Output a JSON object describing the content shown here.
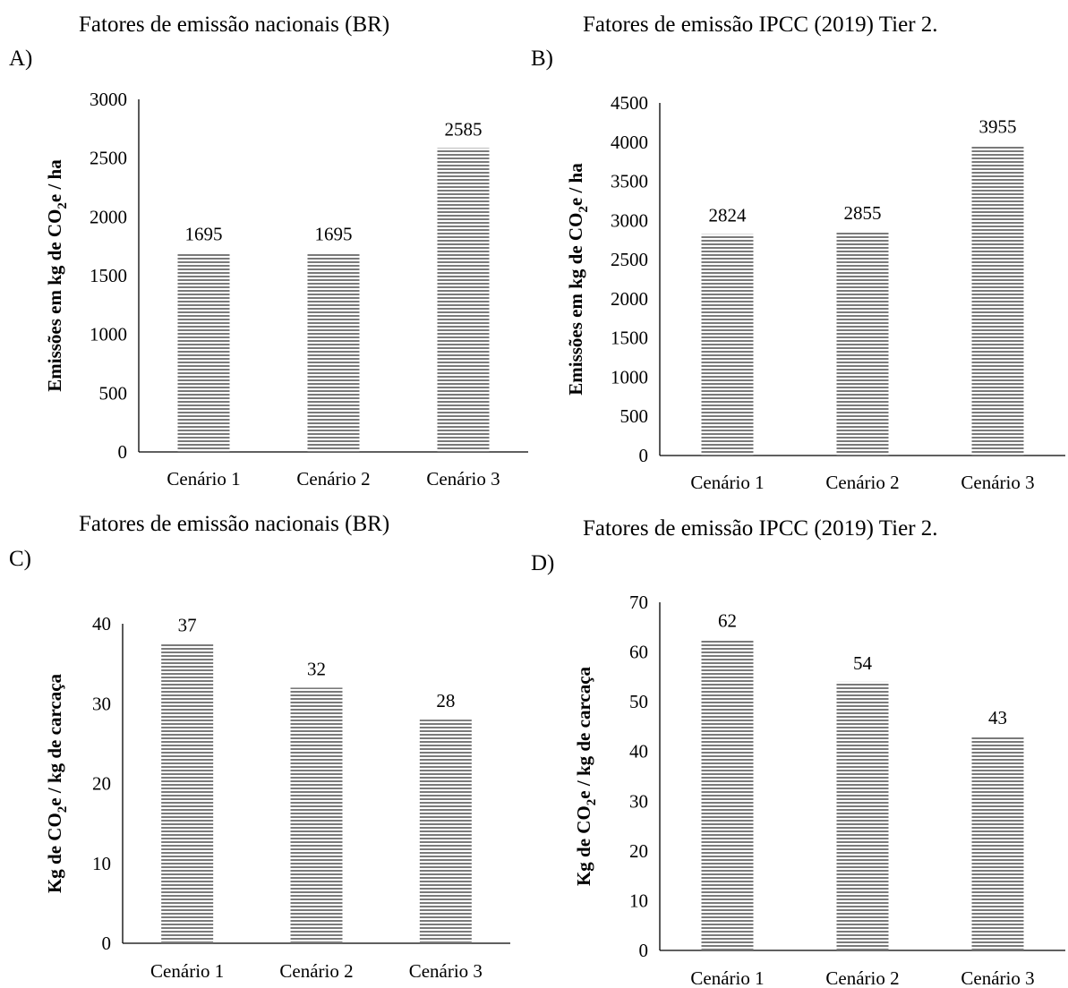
{
  "chart_data": [
    {
      "panel": "A)",
      "type": "bar",
      "title": "Fatores de emissão nacionais (BR)",
      "ylabel": {
        "pre": "Emissões em kg de CO",
        "sub": "2",
        "post": "e / ha"
      },
      "categories": [
        "Cenário 1",
        "Cenário 2",
        "Cenário 3"
      ],
      "values": [
        1695,
        1695,
        2585
      ],
      "ylim": [
        0,
        3000
      ],
      "yticks": [
        0,
        500,
        1000,
        1500,
        2000,
        2500,
        3000
      ],
      "grid": false,
      "legend": "none"
    },
    {
      "panel": "B)",
      "type": "bar",
      "title": "Fatores de emissão IPCC (2019) Tier 2.",
      "ylabel": {
        "pre": "Emissões em kg de CO",
        "sub": "2",
        "post": "e / ha"
      },
      "categories": [
        "Cenário 1",
        "Cenário 2",
        "Cenário 3"
      ],
      "values": [
        2824,
        2855,
        3955
      ],
      "ylim": [
        0,
        4500
      ],
      "yticks": [
        0,
        500,
        1000,
        1500,
        2000,
        2500,
        3000,
        3500,
        4000,
        4500
      ],
      "grid": false,
      "legend": "none"
    },
    {
      "panel": "C)",
      "type": "bar",
      "title": "Fatores de emissão nacionais (BR)",
      "ylabel": {
        "pre": "Kg de CO",
        "sub": "2",
        "post": "e / kg de carcaça"
      },
      "categories": [
        "Cenário 1",
        "Cenário 2",
        "Cenário 3"
      ],
      "values": [
        37.5,
        32,
        28
      ],
      "data_labels": [
        "37",
        "32",
        "28"
      ],
      "ylim": [
        0,
        40
      ],
      "yticks": [
        0,
        10,
        20,
        30,
        40
      ],
      "grid": false,
      "legend": "none"
    },
    {
      "panel": "D)",
      "type": "bar",
      "title": "Fatores de emissão IPCC (2019) Tier 2.",
      "ylabel": {
        "pre": "Kg de CO",
        "sub": "2",
        "post": "e / kg de carcaça"
      },
      "categories": [
        "Cenário 1",
        "Cenário 2",
        "Cenário 3"
      ],
      "values": [
        62.5,
        54,
        43
      ],
      "data_labels": [
        "62",
        "54",
        "43"
      ],
      "ylim": [
        0,
        70
      ],
      "yticks": [
        0,
        10,
        20,
        30,
        40,
        50,
        60,
        70
      ],
      "grid": false,
      "legend": "none"
    }
  ]
}
